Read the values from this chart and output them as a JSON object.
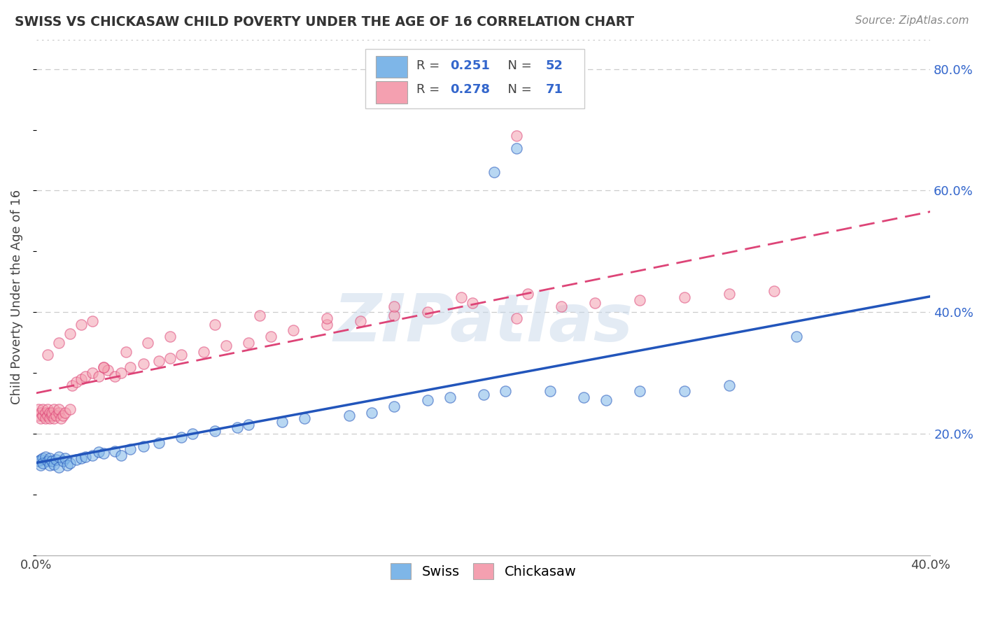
{
  "title": "SWISS VS CHICKASAW CHILD POVERTY UNDER THE AGE OF 16 CORRELATION CHART",
  "source": "Source: ZipAtlas.com",
  "ylabel": "Child Poverty Under the Age of 16",
  "xlim": [
    0.0,
    0.4
  ],
  "ylim": [
    0.0,
    0.85
  ],
  "ytick_labels_right": [
    "20.0%",
    "40.0%",
    "60.0%",
    "80.0%"
  ],
  "ytick_positions_right": [
    0.2,
    0.4,
    0.6,
    0.8
  ],
  "swiss_color": "#7EB6E8",
  "chickasaw_color": "#F4A0B0",
  "swiss_line_color": "#2255BB",
  "chickasaw_line_color": "#DD4477",
  "swiss_R": 0.251,
  "swiss_N": 52,
  "chickasaw_R": 0.278,
  "chickasaw_N": 71,
  "legend_label_swiss": "Swiss",
  "legend_label_chickasaw": "Chickasaw",
  "watermark": "ZIPatlas",
  "background_color": "#ffffff",
  "swiss_x": [
    0.001,
    0.002,
    0.002,
    0.003,
    0.003,
    0.004,
    0.005,
    0.006,
    0.006,
    0.007,
    0.008,
    0.009,
    0.01,
    0.01,
    0.012,
    0.013,
    0.014,
    0.015,
    0.018,
    0.02,
    0.022,
    0.025,
    0.028,
    0.03,
    0.035,
    0.038,
    0.042,
    0.048,
    0.055,
    0.065,
    0.07,
    0.08,
    0.09,
    0.095,
    0.11,
    0.12,
    0.14,
    0.15,
    0.16,
    0.175,
    0.185,
    0.2,
    0.21,
    0.23,
    0.245,
    0.255,
    0.27,
    0.29,
    0.31,
    0.34,
    0.205,
    0.215
  ],
  "swiss_y": [
    0.155,
    0.158,
    0.148,
    0.16,
    0.152,
    0.162,
    0.155,
    0.16,
    0.148,
    0.155,
    0.15,
    0.158,
    0.162,
    0.145,
    0.155,
    0.16,
    0.148,
    0.152,
    0.158,
    0.16,
    0.162,
    0.165,
    0.17,
    0.168,
    0.172,
    0.165,
    0.175,
    0.18,
    0.185,
    0.195,
    0.2,
    0.205,
    0.21,
    0.215,
    0.22,
    0.225,
    0.23,
    0.235,
    0.245,
    0.255,
    0.26,
    0.265,
    0.27,
    0.27,
    0.26,
    0.255,
    0.27,
    0.27,
    0.28,
    0.36,
    0.63,
    0.67
  ],
  "chickasaw_x": [
    0.001,
    0.001,
    0.002,
    0.002,
    0.003,
    0.003,
    0.004,
    0.004,
    0.005,
    0.005,
    0.006,
    0.006,
    0.007,
    0.007,
    0.008,
    0.008,
    0.009,
    0.01,
    0.01,
    0.011,
    0.012,
    0.013,
    0.015,
    0.016,
    0.018,
    0.02,
    0.022,
    0.025,
    0.028,
    0.03,
    0.032,
    0.035,
    0.038,
    0.042,
    0.048,
    0.055,
    0.06,
    0.065,
    0.075,
    0.085,
    0.095,
    0.105,
    0.115,
    0.13,
    0.145,
    0.16,
    0.175,
    0.195,
    0.215,
    0.235,
    0.25,
    0.27,
    0.29,
    0.31,
    0.33,
    0.005,
    0.01,
    0.015,
    0.02,
    0.025,
    0.03,
    0.04,
    0.05,
    0.06,
    0.08,
    0.1,
    0.13,
    0.16,
    0.19,
    0.22,
    0.215
  ],
  "chickasaw_y": [
    0.24,
    0.23,
    0.235,
    0.225,
    0.23,
    0.24,
    0.235,
    0.225,
    0.23,
    0.24,
    0.235,
    0.225,
    0.23,
    0.235,
    0.225,
    0.24,
    0.23,
    0.235,
    0.24,
    0.225,
    0.23,
    0.235,
    0.24,
    0.28,
    0.285,
    0.29,
    0.295,
    0.3,
    0.295,
    0.31,
    0.305,
    0.295,
    0.3,
    0.31,
    0.315,
    0.32,
    0.325,
    0.33,
    0.335,
    0.345,
    0.35,
    0.36,
    0.37,
    0.38,
    0.385,
    0.395,
    0.4,
    0.415,
    0.39,
    0.41,
    0.415,
    0.42,
    0.425,
    0.43,
    0.435,
    0.33,
    0.35,
    0.365,
    0.38,
    0.385,
    0.31,
    0.335,
    0.35,
    0.36,
    0.38,
    0.395,
    0.39,
    0.41,
    0.425,
    0.43,
    0.69
  ]
}
